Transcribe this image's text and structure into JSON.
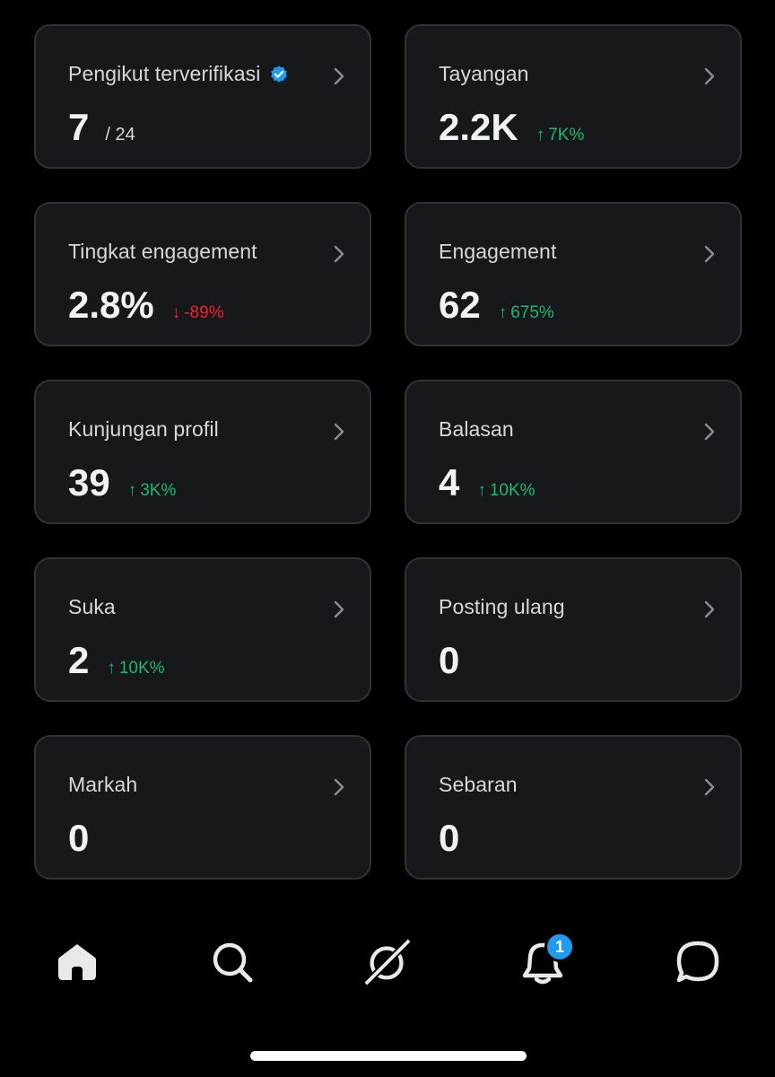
{
  "cards": [
    {
      "label": "Pengikut terverifikasi",
      "value": "7",
      "suffix": "/ 24",
      "change": "",
      "direction": "",
      "verified": true
    },
    {
      "label": "Tayangan",
      "value": "2.2K",
      "suffix": "",
      "change": "7K%",
      "direction": "up",
      "verified": false
    },
    {
      "label": "Tingkat engagement",
      "value": "2.8%",
      "suffix": "",
      "change": "-89%",
      "direction": "down",
      "verified": false
    },
    {
      "label": "Engagement",
      "value": "62",
      "suffix": "",
      "change": "675%",
      "direction": "up",
      "verified": false
    },
    {
      "label": "Kunjungan profil",
      "value": "39",
      "suffix": "",
      "change": "3K%",
      "direction": "up",
      "verified": false
    },
    {
      "label": "Balasan",
      "value": "4",
      "suffix": "",
      "change": "10K%",
      "direction": "up",
      "verified": false
    },
    {
      "label": "Suka",
      "value": "2",
      "suffix": "",
      "change": "10K%",
      "direction": "up",
      "verified": false
    },
    {
      "label": "Posting ulang",
      "value": "0",
      "suffix": "",
      "change": "",
      "direction": "",
      "verified": false
    },
    {
      "label": "Markah",
      "value": "0",
      "suffix": "",
      "change": "",
      "direction": "",
      "verified": false
    },
    {
      "label": "Sebaran",
      "value": "0",
      "suffix": "",
      "change": "",
      "direction": "",
      "verified": false
    }
  ],
  "arrows": {
    "up": "↑",
    "down": "↓"
  },
  "tabs": [
    {
      "name": "home",
      "icon": "home-icon"
    },
    {
      "name": "search",
      "icon": "search-icon"
    },
    {
      "name": "grok",
      "icon": "grok-icon"
    },
    {
      "name": "notifications",
      "icon": "bell-icon",
      "badge": "1"
    },
    {
      "name": "messages",
      "icon": "chat-bubble-icon"
    }
  ],
  "colors": {
    "background": "#000000",
    "card": "#17181c",
    "card_border": "#2f3336",
    "positive": "#1db971",
    "negative": "#f4212e",
    "accent": "#1d9bf0"
  }
}
